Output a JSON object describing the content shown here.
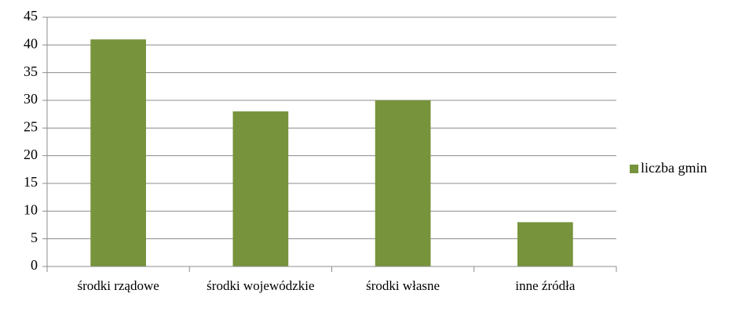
{
  "chart_data": {
    "type": "bar",
    "categories": [
      "środki rządowe",
      "środki wojewódzkie",
      "środki własne",
      "inne źródła"
    ],
    "series": [
      {
        "name": "liczba gmin",
        "color": "#77933c",
        "values": [
          41,
          28,
          30,
          8
        ]
      }
    ],
    "ylim": [
      0,
      45
    ],
    "yticks": [
      0,
      5,
      10,
      15,
      20,
      25,
      30,
      35,
      40,
      45
    ],
    "grid": true,
    "legend": "right"
  }
}
